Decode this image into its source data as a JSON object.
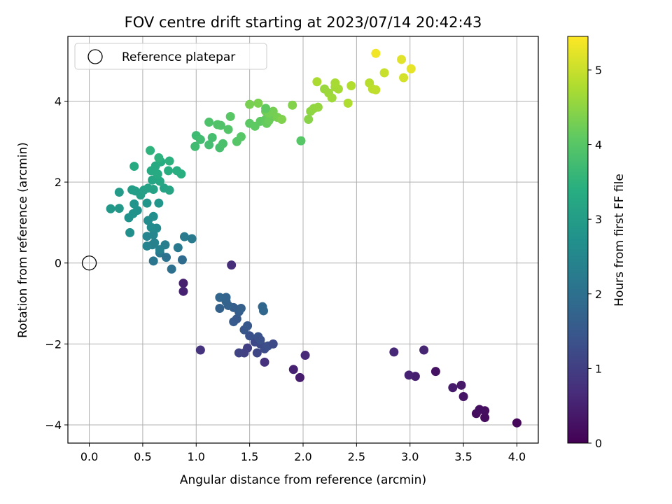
{
  "chart_data": {
    "type": "scatter",
    "title": "FOV centre drift starting at 2023/07/14 20:42:43",
    "xlabel": "Angular distance from reference (arcmin)",
    "ylabel": "Rotation from reference (arcmin)",
    "xlim": [
      -0.2,
      4.2
    ],
    "ylim": [
      -4.45,
      5.6
    ],
    "xticks": [
      "0.0",
      "0.5",
      "1.0",
      "1.5",
      "2.0",
      "2.5",
      "3.0",
      "3.5",
      "4.0"
    ],
    "yticks": [
      "−4",
      "−2",
      "0",
      "2",
      "4"
    ],
    "grid": true,
    "legend": {
      "placement": "top-left",
      "entries": [
        "Reference platepar"
      ]
    },
    "reference_point": {
      "x": 0.0,
      "y": 0.0,
      "label": "Reference platepar",
      "marker": "open-circle"
    },
    "colorbar": {
      "label": "Hours from first FF file",
      "range": [
        0,
        5.45
      ],
      "ticks": [
        "0",
        "1",
        "2",
        "3",
        "4",
        "5"
      ],
      "colormap": "viridis"
    },
    "points": [
      [
        4.0,
        -3.95,
        0.1
      ],
      [
        3.7,
        -3.82,
        0.15
      ],
      [
        3.7,
        -3.65,
        0.2
      ],
      [
        3.62,
        -3.72,
        0.18
      ],
      [
        3.65,
        -3.62,
        0.22
      ],
      [
        3.5,
        -3.3,
        0.3
      ],
      [
        3.48,
        -3.02,
        0.35
      ],
      [
        3.4,
        -3.08,
        0.4
      ],
      [
        3.24,
        -2.68,
        0.25
      ],
      [
        3.05,
        -2.8,
        0.45
      ],
      [
        2.99,
        -2.77,
        0.5
      ],
      [
        3.13,
        -2.15,
        0.55
      ],
      [
        2.85,
        -2.2,
        0.6
      ],
      [
        2.02,
        -2.28,
        0.65
      ],
      [
        1.97,
        -2.83,
        0.42
      ],
      [
        1.91,
        -2.63,
        0.5
      ],
      [
        1.33,
        -0.05,
        0.7
      ],
      [
        0.88,
        -0.5,
        0.45
      ],
      [
        0.88,
        -0.7,
        0.5
      ],
      [
        1.04,
        -2.15,
        0.8
      ],
      [
        1.64,
        -2.45,
        0.75
      ],
      [
        1.48,
        -2.1,
        1.0
      ],
      [
        1.45,
        -2.22,
        1.05
      ],
      [
        1.4,
        -2.22,
        1.1
      ],
      [
        1.57,
        -2.22,
        1.15
      ],
      [
        1.6,
        -2.0,
        1.2
      ],
      [
        1.64,
        -2.12,
        1.25
      ],
      [
        1.67,
        -2.05,
        1.3
      ],
      [
        1.72,
        -2.0,
        1.22
      ],
      [
        1.55,
        -1.95,
        1.18
      ],
      [
        1.5,
        -1.8,
        1.35
      ],
      [
        1.58,
        -1.82,
        1.4
      ],
      [
        1.6,
        -1.9,
        1.32
      ],
      [
        1.45,
        -1.65,
        1.45
      ],
      [
        1.48,
        -1.55,
        1.5
      ],
      [
        1.35,
        -1.45,
        1.55
      ],
      [
        1.38,
        -1.38,
        1.52
      ],
      [
        1.4,
        -1.2,
        1.6
      ],
      [
        1.35,
        -1.1,
        1.62
      ],
      [
        1.42,
        -1.12,
        1.65
      ],
      [
        1.3,
        -1.05,
        1.7
      ],
      [
        1.28,
        -0.95,
        1.72
      ],
      [
        1.28,
        -0.85,
        1.75
      ],
      [
        1.22,
        -0.85,
        1.78
      ],
      [
        1.22,
        -1.12,
        1.68
      ],
      [
        1.62,
        -1.08,
        1.8
      ],
      [
        1.63,
        -1.18,
        1.82
      ],
      [
        0.77,
        -0.15,
        2.0
      ],
      [
        0.6,
        0.05,
        2.1
      ],
      [
        0.66,
        0.25,
        2.15
      ],
      [
        0.72,
        0.14,
        2.05
      ],
      [
        0.87,
        0.08,
        1.9
      ],
      [
        0.83,
        0.38,
        2.2
      ],
      [
        0.89,
        0.65,
        2.25
      ],
      [
        0.96,
        0.6,
        2.22
      ],
      [
        0.71,
        0.45,
        2.3
      ],
      [
        0.66,
        0.33,
        2.35
      ],
      [
        0.61,
        0.5,
        2.4
      ],
      [
        0.59,
        0.45,
        2.38
      ],
      [
        0.54,
        0.42,
        2.42
      ],
      [
        0.54,
        0.66,
        2.45
      ],
      [
        0.6,
        0.7,
        2.5
      ],
      [
        0.63,
        0.86,
        2.55
      ],
      [
        0.58,
        0.88,
        2.6
      ],
      [
        0.55,
        1.05,
        2.62
      ],
      [
        0.6,
        1.15,
        2.68
      ],
      [
        0.38,
        0.75,
        2.7
      ],
      [
        0.37,
        1.12,
        2.72
      ],
      [
        0.45,
        1.3,
        2.75
      ],
      [
        0.41,
        1.22,
        2.78
      ],
      [
        0.42,
        1.46,
        2.8
      ],
      [
        0.54,
        1.48,
        2.82
      ],
      [
        0.65,
        1.48,
        2.85
      ],
      [
        0.2,
        1.34,
        2.88
      ],
      [
        0.28,
        1.35,
        2.9
      ],
      [
        0.28,
        1.75,
        2.95
      ],
      [
        0.4,
        1.81,
        3.0
      ],
      [
        0.43,
        1.78,
        3.02
      ],
      [
        0.48,
        1.68,
        3.05
      ],
      [
        0.51,
        1.8,
        3.08
      ],
      [
        0.55,
        1.85,
        3.1
      ],
      [
        0.6,
        1.82,
        3.12
      ],
      [
        0.7,
        1.85,
        3.15
      ],
      [
        0.75,
        1.8,
        3.18
      ],
      [
        0.59,
        2.05,
        3.2
      ],
      [
        0.63,
        2.1,
        3.22
      ],
      [
        0.66,
        2.02,
        3.25
      ],
      [
        0.58,
        2.28,
        3.28
      ],
      [
        0.64,
        2.2,
        3.3
      ],
      [
        0.62,
        2.4,
        3.32
      ],
      [
        0.67,
        2.5,
        3.35
      ],
      [
        0.74,
        2.28,
        3.38
      ],
      [
        0.82,
        2.28,
        3.4
      ],
      [
        0.86,
        2.2,
        3.42
      ],
      [
        0.75,
        2.52,
        3.45
      ],
      [
        0.65,
        2.6,
        3.48
      ],
      [
        0.57,
        2.78,
        3.5
      ],
      [
        0.42,
        2.39,
        3.3
      ],
      [
        1.0,
        3.15,
        3.7
      ],
      [
        0.99,
        2.88,
        3.72
      ],
      [
        1.04,
        3.05,
        3.75
      ],
      [
        1.12,
        2.92,
        3.78
      ],
      [
        1.15,
        3.1,
        3.8
      ],
      [
        1.22,
        2.85,
        3.82
      ],
      [
        1.25,
        2.95,
        3.85
      ],
      [
        1.12,
        3.48,
        3.88
      ],
      [
        1.2,
        3.42,
        3.9
      ],
      [
        1.23,
        3.4,
        3.92
      ],
      [
        1.3,
        3.3,
        3.95
      ],
      [
        1.38,
        3.0,
        3.98
      ],
      [
        1.42,
        3.12,
        4.0
      ],
      [
        1.32,
        3.62,
        4.02
      ],
      [
        1.5,
        3.45,
        4.05
      ],
      [
        1.55,
        3.38,
        4.08
      ],
      [
        1.6,
        3.5,
        4.1
      ],
      [
        1.65,
        3.55,
        4.12
      ],
      [
        1.66,
        3.45,
        4.15
      ],
      [
        1.68,
        3.52,
        4.18
      ],
      [
        1.7,
        3.6,
        4.2
      ],
      [
        1.65,
        3.75,
        4.22
      ],
      [
        1.68,
        3.7,
        4.25
      ],
      [
        1.72,
        3.75,
        4.28
      ],
      [
        1.65,
        3.82,
        4.1
      ],
      [
        1.76,
        3.6,
        4.3
      ],
      [
        1.5,
        3.92,
        4.32
      ],
      [
        1.58,
        3.95,
        4.35
      ],
      [
        1.8,
        3.55,
        4.38
      ],
      [
        1.9,
        3.9,
        4.4
      ],
      [
        1.98,
        3.02,
        4.0
      ],
      [
        2.05,
        3.55,
        4.45
      ],
      [
        2.07,
        3.75,
        4.5
      ],
      [
        2.1,
        3.82,
        4.52
      ],
      [
        2.14,
        3.85,
        4.55
      ],
      [
        2.2,
        4.3,
        4.6
      ],
      [
        2.24,
        4.2,
        4.62
      ],
      [
        2.27,
        4.08,
        4.65
      ],
      [
        2.3,
        4.35,
        4.68
      ],
      [
        2.33,
        4.3,
        4.7
      ],
      [
        2.3,
        4.45,
        4.72
      ],
      [
        2.13,
        4.48,
        4.75
      ],
      [
        2.42,
        3.95,
        4.78
      ],
      [
        2.45,
        4.38,
        4.8
      ],
      [
        2.62,
        4.45,
        4.85
      ],
      [
        2.65,
        4.3,
        4.9
      ],
      [
        2.68,
        4.28,
        4.92
      ],
      [
        2.76,
        4.7,
        5.0
      ],
      [
        2.94,
        4.58,
        5.1
      ],
      [
        2.92,
        5.03,
        5.2
      ],
      [
        3.01,
        4.8,
        5.25
      ],
      [
        2.68,
        5.18,
        5.35
      ]
    ]
  }
}
